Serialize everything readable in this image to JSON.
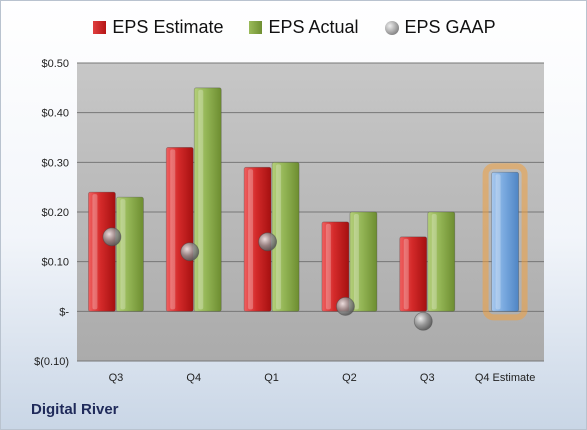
{
  "chart_data": {
    "type": "bar",
    "categories": [
      "Q3",
      "Q4",
      "Q1",
      "Q2",
      "Q3",
      "Q4 Estimate"
    ],
    "series": [
      {
        "name": "EPS Estimate",
        "values": [
          0.24,
          0.33,
          0.29,
          0.18,
          0.15,
          null
        ],
        "color": "#c0202a"
      },
      {
        "name": "EPS Actual",
        "values": [
          0.23,
          0.45,
          0.3,
          0.2,
          0.2,
          null
        ],
        "color": "#8aab4a"
      },
      {
        "name": "EPS GAAP",
        "values": [
          0.15,
          0.12,
          0.14,
          0.01,
          -0.02,
          null
        ],
        "color": "#9a9a9a"
      }
    ],
    "highlight": {
      "category": "Q4 Estimate",
      "value": 0.28,
      "color": "#6fa0d8",
      "glow": "#f0a040"
    },
    "yticks": [
      "$0.50",
      "$0.40",
      "$0.30",
      "$0.20",
      "$0.10",
      "$-",
      "$(0.10)"
    ],
    "ylim": [
      -0.1,
      0.5
    ],
    "grid": true,
    "legend_position": "top",
    "title": "",
    "xlabel": "",
    "ylabel": ""
  },
  "legend": {
    "estimate": "EPS Estimate",
    "actual": "EPS Actual",
    "gaap": "EPS GAAP"
  },
  "company": "Digital River"
}
